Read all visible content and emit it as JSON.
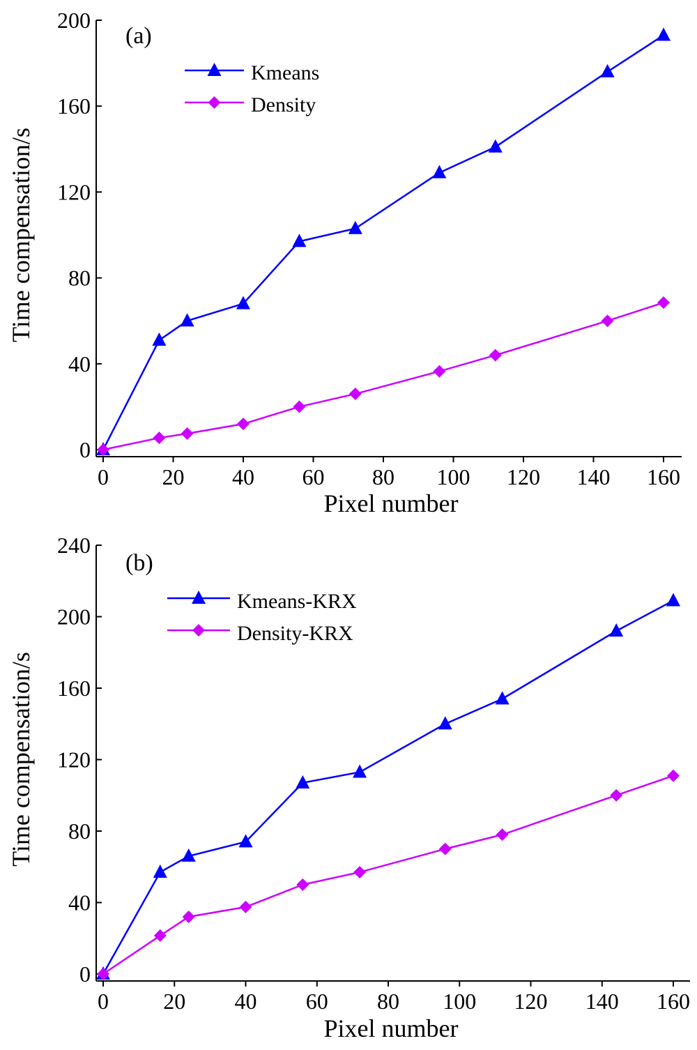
{
  "chart_data": [
    {
      "type": "line",
      "panel_label": "(a)",
      "xlabel": "Pixel number",
      "ylabel": "Time compensation/s",
      "xlim": [
        0,
        160
      ],
      "ylim": [
        0,
        200
      ],
      "xticks": [
        0,
        20,
        40,
        60,
        80,
        100,
        120,
        140,
        160
      ],
      "yticks": [
        0,
        40,
        80,
        120,
        160,
        200
      ],
      "grid": false,
      "legend_position": "top-left",
      "series": [
        {
          "name": "Kmeans",
          "color": "#0000ff",
          "marker": "triangle",
          "x": [
            0,
            16,
            24,
            40,
            56,
            72,
            96,
            112,
            144,
            160
          ],
          "y": [
            0,
            51,
            60,
            68,
            97,
            103,
            129,
            141,
            176,
            193
          ]
        },
        {
          "name": "Density",
          "color": "#cc00ff",
          "marker": "diamond",
          "x": [
            0,
            16,
            24,
            40,
            56,
            72,
            96,
            112,
            144,
            160
          ],
          "y": [
            0,
            5.5,
            7.5,
            12,
            20,
            26,
            36.5,
            44,
            60,
            68.5
          ]
        }
      ]
    },
    {
      "type": "line",
      "panel_label": "(b)",
      "xlabel": "Pixel number",
      "ylabel": "Time compensation/s",
      "xlim": [
        0,
        160
      ],
      "ylim": [
        0,
        240
      ],
      "xticks": [
        0,
        20,
        40,
        60,
        80,
        100,
        120,
        140,
        160
      ],
      "yticks": [
        0,
        40,
        80,
        120,
        160,
        200,
        240
      ],
      "grid": false,
      "legend_position": "top-left",
      "series": [
        {
          "name": "Kmeans-KRX",
          "color": "#0000ff",
          "marker": "triangle",
          "x": [
            0,
            16,
            24,
            40,
            56,
            72,
            96,
            112,
            144,
            160
          ],
          "y": [
            0,
            57,
            66,
            74,
            107,
            113,
            140,
            154,
            192,
            209
          ]
        },
        {
          "name": "Density-KRX",
          "color": "#cc00ff",
          "marker": "diamond",
          "x": [
            0,
            16,
            24,
            40,
            56,
            72,
            96,
            112,
            144,
            160
          ],
          "y": [
            0,
            21.5,
            32,
            37.5,
            50,
            57,
            70,
            78,
            100,
            111
          ]
        }
      ]
    }
  ]
}
